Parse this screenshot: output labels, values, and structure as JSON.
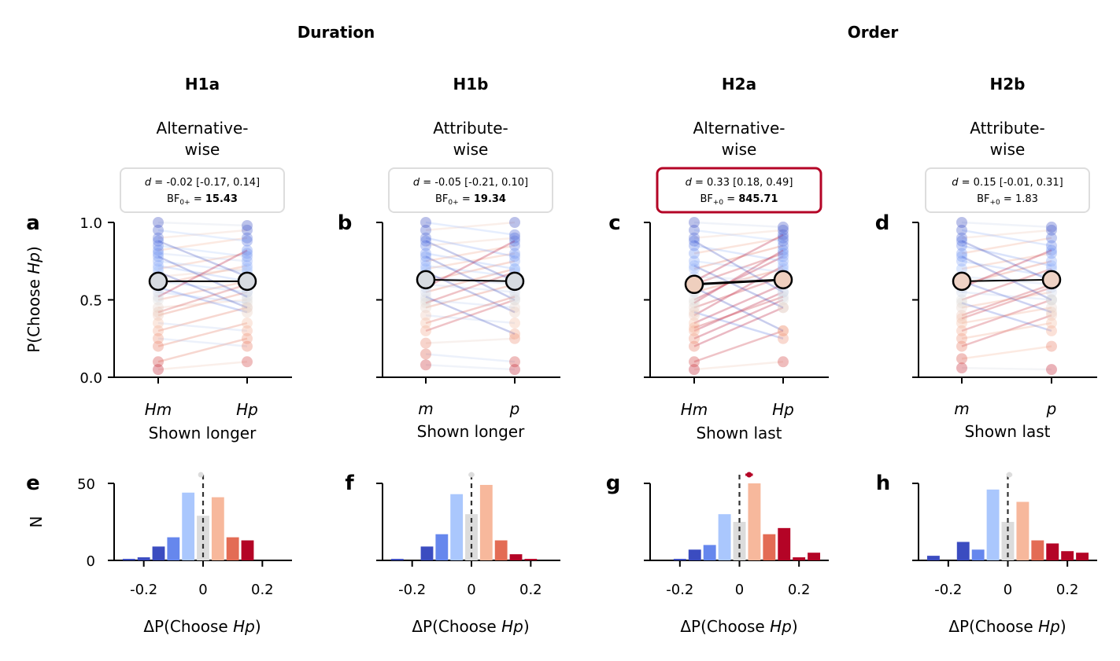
{
  "group_titles": [
    {
      "label": "Duration"
    },
    {
      "label": "Order"
    }
  ],
  "panels": [
    {
      "hypothesis": "H1a",
      "subtitle": [
        "Alternative-",
        "wise"
      ],
      "stat": {
        "d": "-0.02 [-0.17, 0.14]",
        "bf_sub": "0+",
        "bf": "15.43",
        "bf_bold": true,
        "highlight": false
      },
      "top_label": "a",
      "bottom_label": "e",
      "x_categories": [
        "Hm",
        "Hp"
      ],
      "xlabel": "Shown longer",
      "mean": [
        0.62,
        0.62
      ],
      "mean_color": "#d7dbe1"
    },
    {
      "hypothesis": "H1b",
      "subtitle": [
        "Attribute-",
        "wise"
      ],
      "stat": {
        "d": "-0.05 [-0.21, 0.10]",
        "bf_sub": "0+",
        "bf": "19.34",
        "bf_bold": true,
        "highlight": false
      },
      "top_label": "b",
      "bottom_label": "f",
      "x_categories": [
        "m",
        "p"
      ],
      "xlabel": "Shown longer",
      "mean": [
        0.63,
        0.62
      ],
      "mean_color": "#d7dbe1"
    },
    {
      "hypothesis": "H2a",
      "subtitle": [
        "Alternative-",
        "wise"
      ],
      "stat": {
        "d": "0.33 [0.18, 0.49]",
        "bf_sub": "+0",
        "bf": "845.71",
        "bf_bold": true,
        "highlight": true
      },
      "top_label": "c",
      "bottom_label": "g",
      "x_categories": [
        "Hm",
        "Hp"
      ],
      "xlabel": "Shown last",
      "mean": [
        0.6,
        0.63
      ],
      "mean_color": "#efcfbe"
    },
    {
      "hypothesis": "H2b",
      "subtitle": [
        "Attribute-",
        "wise"
      ],
      "stat": {
        "d": "0.15 [-0.01, 0.31]",
        "bf_sub": "+0",
        "bf": "1.83",
        "bf_bold": false,
        "highlight": false
      },
      "top_label": "d",
      "bottom_label": "h",
      "x_categories": [
        "m",
        "p"
      ],
      "xlabel": "Shown last",
      "mean": [
        0.62,
        0.63
      ],
      "mean_color": "#efd3c6"
    }
  ],
  "top_axis": {
    "ylabel_prefix": "P(Choose ",
    "ylabel_italic": "Hp",
    "ylabel_suffix": ")",
    "yticks": [
      "0.0",
      "0.5",
      "1.0"
    ],
    "ylim": [
      0,
      1
    ]
  },
  "bottom_axis": {
    "ylabel": "N",
    "yticks": [
      "0",
      "50"
    ],
    "ylim": [
      0,
      57
    ],
    "xticks": [
      "-0.2",
      "0",
      "0.2"
    ],
    "xlim": [
      -0.3,
      0.3
    ],
    "xlabel_prefix": "ΔP(Choose ",
    "xlabel_italic": "Hp",
    "xlabel_suffix": ")"
  },
  "stat_label": {
    "d": "d",
    "bf": "BF"
  },
  "colors": {
    "highlight": "#b40426",
    "box_border": "#dddddd",
    "neutral": "#dcdcdc"
  },
  "chart_data": [
    {
      "type": "bar",
      "title": "e",
      "bin_centers": [
        -0.25,
        -0.2,
        -0.15,
        -0.1,
        -0.05,
        0,
        0.05,
        0.1,
        0.15,
        0.2,
        0.25
      ],
      "values": [
        1,
        2,
        9,
        15,
        44,
        29,
        41,
        15,
        13,
        0,
        0
      ],
      "colors": [
        "#3b4cc0",
        "#3b4cc0",
        "#3b4cc0",
        "#6687ed",
        "#aac7fd",
        "#dcdcdc",
        "#f7b89c",
        "#e36c55",
        "#b40426",
        "#b40426",
        "#b40426"
      ],
      "ci": [
        -0.015,
        0.0
      ]
    },
    {
      "type": "bar",
      "title": "f",
      "bin_centers": [
        -0.25,
        -0.2,
        -0.15,
        -0.1,
        -0.05,
        0,
        0.05,
        0.1,
        0.15,
        0.2,
        0.25
      ],
      "values": [
        1,
        0,
        9,
        17,
        43,
        30,
        49,
        13,
        4,
        1,
        0
      ],
      "colors": [
        "#3b4cc0",
        "#3b4cc0",
        "#3b4cc0",
        "#6687ed",
        "#aac7fd",
        "#dcdcdc",
        "#f7b89c",
        "#e36c55",
        "#b40426",
        "#b40426",
        "#b40426"
      ],
      "ci": [
        -0.01,
        0.01
      ]
    },
    {
      "type": "bar",
      "title": "g",
      "bin_centers": [
        -0.25,
        -0.2,
        -0.15,
        -0.1,
        -0.05,
        0,
        0.05,
        0.1,
        0.15,
        0.2,
        0.25
      ],
      "values": [
        0,
        1,
        7,
        10,
        30,
        25,
        50,
        17,
        21,
        2,
        5
      ],
      "colors": [
        "#3b4cc0",
        "#3b4cc0",
        "#3b4cc0",
        "#6687ed",
        "#aac7fd",
        "#dcdcdc",
        "#f7b89c",
        "#e36c55",
        "#b40426",
        "#b40426",
        "#b40426"
      ],
      "ci": [
        0.02,
        0.045
      ],
      "ci_color": "#b40426"
    },
    {
      "type": "bar",
      "title": "h",
      "bin_centers": [
        -0.25,
        -0.2,
        -0.15,
        -0.1,
        -0.05,
        0,
        0.05,
        0.1,
        0.15,
        0.2,
        0.25
      ],
      "values": [
        3,
        0,
        12,
        7,
        46,
        25,
        38,
        13,
        11,
        6,
        5
      ],
      "colors": [
        "#3b4cc0",
        "#3b4cc0",
        "#3b4cc0",
        "#6687ed",
        "#aac7fd",
        "#dcdcdc",
        "#f7b89c",
        "#e36c55",
        "#b40426",
        "#b40426",
        "#b40426"
      ],
      "ci": [
        -0.005,
        0.015
      ]
    },
    {
      "type": "line",
      "title": "a",
      "x": [
        "Hm",
        "Hp"
      ],
      "series": [
        {
          "values": [
            0.2,
            0.35
          ]
        },
        {
          "values": [
            0.3,
            0.45
          ]
        },
        {
          "values": [
            0.35,
            0.3
          ]
        },
        {
          "values": [
            0.4,
            0.55
          ]
        },
        {
          "values": [
            0.45,
            0.5
          ]
        },
        {
          "values": [
            0.5,
            0.62
          ]
        },
        {
          "values": [
            0.55,
            0.48
          ]
        },
        {
          "values": [
            0.6,
            0.72
          ]
        },
        {
          "values": [
            0.62,
            0.55
          ]
        },
        {
          "values": [
            0.65,
            0.7
          ]
        },
        {
          "values": [
            0.7,
            0.8
          ]
        },
        {
          "values": [
            0.72,
            0.62
          ]
        },
        {
          "values": [
            0.75,
            0.68
          ]
        },
        {
          "values": [
            0.8,
            0.75
          ]
        },
        {
          "values": [
            0.82,
            0.9
          ]
        },
        {
          "values": [
            0.85,
            0.78
          ]
        },
        {
          "values": [
            0.9,
            0.95
          ]
        },
        {
          "values": [
            0.95,
            0.88
          ]
        },
        {
          "values": [
            1.0,
            0.98
          ]
        },
        {
          "values": [
            0.1,
            0.25
          ]
        },
        {
          "values": [
            0.05,
            0.1
          ]
        },
        {
          "values": [
            0.25,
            0.2
          ]
        },
        {
          "values": [
            0.58,
            0.42
          ]
        },
        {
          "values": [
            0.68,
            0.45
          ]
        },
        {
          "values": [
            0.78,
            0.52
          ]
        },
        {
          "values": [
            0.88,
            0.65
          ]
        },
        {
          "values": [
            0.52,
            0.82
          ]
        },
        {
          "values": [
            0.42,
            0.6
          ]
        }
      ]
    },
    {
      "type": "line",
      "title": "b",
      "x": [
        "m",
        "p"
      ],
      "series": [
        {
          "values": [
            0.22,
            0.25
          ]
        },
        {
          "values": [
            0.3,
            0.5
          ]
        },
        {
          "values": [
            0.4,
            0.35
          ]
        },
        {
          "values": [
            0.45,
            0.6
          ]
        },
        {
          "values": [
            0.5,
            0.45
          ]
        },
        {
          "values": [
            0.55,
            0.7
          ]
        },
        {
          "values": [
            0.6,
            0.55
          ]
        },
        {
          "values": [
            0.62,
            0.75
          ]
        },
        {
          "values": [
            0.65,
            0.6
          ]
        },
        {
          "values": [
            0.7,
            0.8
          ]
        },
        {
          "values": [
            0.72,
            0.65
          ]
        },
        {
          "values": [
            0.75,
            0.85
          ]
        },
        {
          "values": [
            0.8,
            0.7
          ]
        },
        {
          "values": [
            0.85,
            0.9
          ]
        },
        {
          "values": [
            0.9,
            0.78
          ]
        },
        {
          "values": [
            0.95,
            1.0
          ]
        },
        {
          "values": [
            1.0,
            0.92
          ]
        },
        {
          "values": [
            0.15,
            0.1
          ]
        },
        {
          "values": [
            0.08,
            0.05
          ]
        },
        {
          "values": [
            0.52,
            0.28
          ]
        },
        {
          "values": [
            0.68,
            0.42
          ]
        },
        {
          "values": [
            0.78,
            0.5
          ]
        },
        {
          "values": [
            0.88,
            0.62
          ]
        },
        {
          "values": [
            0.58,
            0.88
          ]
        },
        {
          "values": [
            0.48,
            0.68
          ]
        },
        {
          "values": [
            0.35,
            0.52
          ]
        }
      ]
    },
    {
      "type": "line",
      "title": "c",
      "x": [
        "Hm",
        "Hp"
      ],
      "series": [
        {
          "values": [
            0.05,
            0.1
          ]
        },
        {
          "values": [
            0.1,
            0.3
          ]
        },
        {
          "values": [
            0.2,
            0.45
          ]
        },
        {
          "values": [
            0.25,
            0.5
          ]
        },
        {
          "values": [
            0.3,
            0.55
          ]
        },
        {
          "values": [
            0.35,
            0.6
          ]
        },
        {
          "values": [
            0.4,
            0.72
          ]
        },
        {
          "values": [
            0.45,
            0.65
          ]
        },
        {
          "values": [
            0.5,
            0.78
          ]
        },
        {
          "values": [
            0.55,
            0.7
          ]
        },
        {
          "values": [
            0.6,
            0.8
          ]
        },
        {
          "values": [
            0.65,
            0.62
          ]
        },
        {
          "values": [
            0.7,
            0.85
          ]
        },
        {
          "values": [
            0.75,
            0.68
          ]
        },
        {
          "values": [
            0.8,
            0.9
          ]
        },
        {
          "values": [
            0.85,
            0.75
          ]
        },
        {
          "values": [
            0.9,
            0.95
          ]
        },
        {
          "values": [
            0.95,
            0.88
          ]
        },
        {
          "values": [
            1.0,
            0.97
          ]
        },
        {
          "values": [
            0.42,
            0.25
          ]
        },
        {
          "values": [
            0.58,
            0.3
          ]
        },
        {
          "values": [
            0.72,
            0.45
          ]
        },
        {
          "values": [
            0.88,
            0.55
          ]
        },
        {
          "values": [
            0.32,
            0.52
          ]
        },
        {
          "values": [
            0.48,
            0.82
          ]
        },
        {
          "values": [
            0.62,
            0.92
          ]
        }
      ]
    },
    {
      "type": "line",
      "title": "d",
      "x": [
        "m",
        "p"
      ],
      "series": [
        {
          "values": [
            0.06,
            0.05
          ]
        },
        {
          "values": [
            0.12,
            0.2
          ]
        },
        {
          "values": [
            0.2,
            0.4
          ]
        },
        {
          "values": [
            0.25,
            0.35
          ]
        },
        {
          "values": [
            0.3,
            0.5
          ]
        },
        {
          "values": [
            0.35,
            0.45
          ]
        },
        {
          "values": [
            0.4,
            0.6
          ]
        },
        {
          "values": [
            0.45,
            0.55
          ]
        },
        {
          "values": [
            0.5,
            0.7
          ]
        },
        {
          "values": [
            0.55,
            0.5
          ]
        },
        {
          "values": [
            0.6,
            0.75
          ]
        },
        {
          "values": [
            0.65,
            0.6
          ]
        },
        {
          "values": [
            0.7,
            0.8
          ]
        },
        {
          "values": [
            0.75,
            0.65
          ]
        },
        {
          "values": [
            0.8,
            0.9
          ]
        },
        {
          "values": [
            0.85,
            0.72
          ]
        },
        {
          "values": [
            0.9,
            0.95
          ]
        },
        {
          "values": [
            0.95,
            0.85
          ]
        },
        {
          "values": [
            1.0,
            0.97
          ]
        },
        {
          "values": [
            0.48,
            0.3
          ]
        },
        {
          "values": [
            0.62,
            0.42
          ]
        },
        {
          "values": [
            0.78,
            0.5
          ]
        },
        {
          "values": [
            0.88,
            0.62
          ]
        },
        {
          "values": [
            0.38,
            0.58
          ]
        },
        {
          "values": [
            0.58,
            0.82
          ]
        }
      ]
    }
  ]
}
